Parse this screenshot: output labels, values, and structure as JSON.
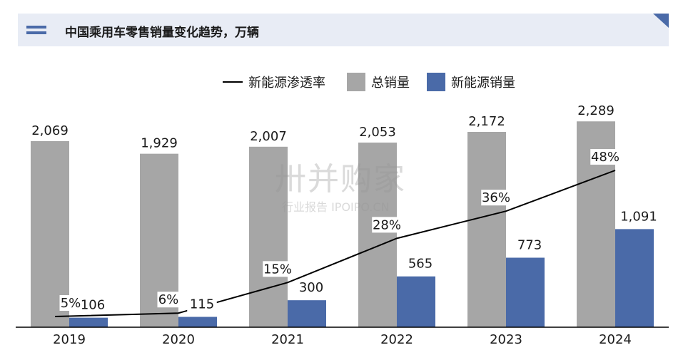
{
  "header": {
    "title": "中国乘用车零售销量变化趋势，万辆"
  },
  "legend": {
    "rate": "新能源渗透率",
    "total": "总销量",
    "nev": "新能源销量"
  },
  "watermark": {
    "main": "卅并购家",
    "sub": "行业报告 IPOIPO.CN"
  },
  "colors": {
    "total": "#a6a6a6",
    "nev": "#4a6aa8",
    "rate": "#000000",
    "header_bg": "#e8ecf5"
  },
  "chart_data": {
    "type": "bar",
    "categories": [
      "2019",
      "2020",
      "2021",
      "2022",
      "2023",
      "2024"
    ],
    "series": [
      {
        "name": "总销量",
        "values": [
          2069,
          1929,
          2007,
          2053,
          2172,
          2289
        ],
        "labels": [
          "2,069",
          "1,929",
          "2,007",
          "2,053",
          "2,172",
          "2,289"
        ]
      },
      {
        "name": "新能源销量",
        "values": [
          106,
          115,
          300,
          565,
          773,
          1091
        ],
        "labels": [
          "106",
          "115",
          "300",
          "565",
          "773",
          "1,091"
        ]
      },
      {
        "name": "新能源渗透率",
        "type": "line",
        "values": [
          5,
          6,
          15,
          28,
          36,
          48
        ],
        "labels": [
          "5%",
          "6%",
          "15%",
          "28%",
          "36%",
          "48%"
        ]
      }
    ],
    "title": "中国乘用车零售销量变化趋势，万辆",
    "grid": false,
    "legend_position": "top"
  }
}
